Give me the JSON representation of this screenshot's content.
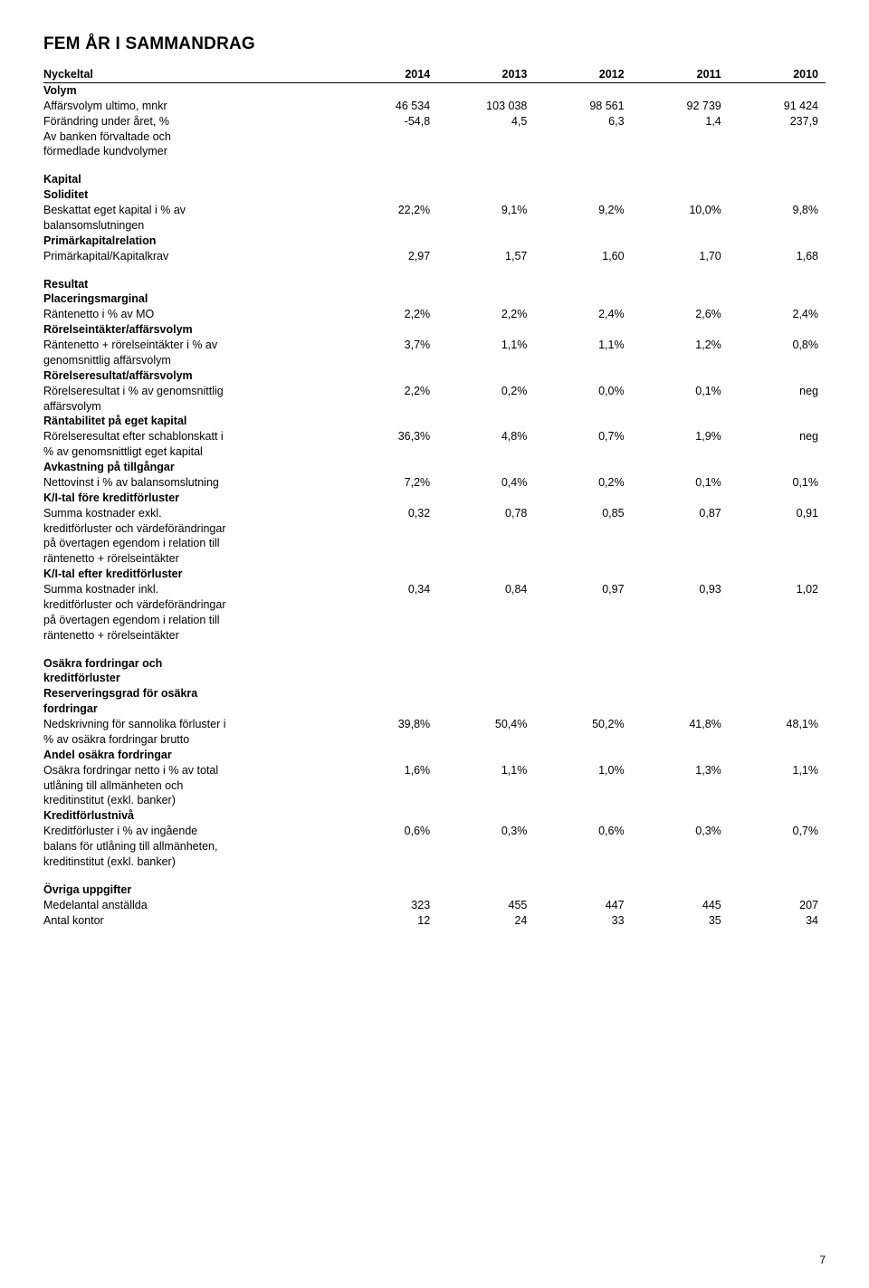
{
  "title": "FEM ÅR I SAMMANDRAG",
  "years": [
    "2014",
    "2013",
    "2012",
    "2011",
    "2010"
  ],
  "col_header_label": "Nyckeltal",
  "page_number": "7",
  "sections": [
    {
      "heading": "Volym",
      "rows": [
        {
          "label": "Affärsvolym ultimo, mnkr",
          "vals": [
            "46 534",
            "103 038",
            "98 561",
            "92 739",
            "91 424"
          ]
        },
        {
          "label": "Förändring under året, %",
          "vals": [
            "-54,8",
            "4,5",
            "6,3",
            "1,4",
            "237,9"
          ]
        },
        {
          "label": "Av banken förvaltade och",
          "vals": [
            "",
            "",
            "",
            "",
            ""
          ]
        },
        {
          "label": "förmedlade kundvolymer",
          "vals": [
            "",
            "",
            "",
            "",
            ""
          ]
        }
      ]
    },
    {
      "heading": "Kapital",
      "subheading": "Soliditet",
      "rows": [
        {
          "label": "Beskattat eget kapital i % av",
          "vals": [
            "22,2%",
            "9,1%",
            "9,2%",
            "10,0%",
            "9,8%"
          ]
        },
        {
          "label": "balansomslutningen",
          "vals": [
            "",
            "",
            "",
            "",
            ""
          ]
        },
        {
          "bold": true,
          "label": "Primärkapitalrelation",
          "vals": [
            "",
            "",
            "",
            "",
            ""
          ]
        },
        {
          "label": "Primärkapital/Kapitalkrav",
          "vals": [
            "2,97",
            "1,57",
            "1,60",
            "1,70",
            "1,68"
          ]
        }
      ]
    },
    {
      "heading": "Resultat",
      "subheading": "Placeringsmarginal",
      "rows": [
        {
          "label": "Räntenetto i % av MO",
          "vals": [
            "2,2%",
            "2,2%",
            "2,4%",
            "2,6%",
            "2,4%"
          ]
        },
        {
          "bold": true,
          "label": "Rörelseintäkter/affärsvolym",
          "vals": [
            "",
            "",
            "",
            "",
            ""
          ]
        },
        {
          "label": "Räntenetto + rörelseintäkter i % av",
          "vals": [
            "3,7%",
            "1,1%",
            "1,1%",
            "1,2%",
            "0,8%"
          ]
        },
        {
          "label": "genomsnittlig affärsvolym",
          "vals": [
            "",
            "",
            "",
            "",
            ""
          ]
        },
        {
          "bold": true,
          "label": "Rörelseresultat/affärsvolym",
          "vals": [
            "",
            "",
            "",
            "",
            ""
          ]
        },
        {
          "label": "Rörelseresultat i % av genomsnittlig",
          "vals": [
            "2,2%",
            "0,2%",
            "0,0%",
            "0,1%",
            "neg"
          ]
        },
        {
          "label": "affärsvolym",
          "vals": [
            "",
            "",
            "",
            "",
            ""
          ]
        },
        {
          "bold": true,
          "label": "Räntabilitet på eget kapital",
          "vals": [
            "",
            "",
            "",
            "",
            ""
          ]
        },
        {
          "label": "Rörelseresultat efter schablonskatt i",
          "vals": [
            "36,3%",
            "4,8%",
            "0,7%",
            "1,9%",
            "neg"
          ]
        },
        {
          "label": "% av genomsnittligt eget kapital",
          "vals": [
            "",
            "",
            "",
            "",
            ""
          ]
        },
        {
          "bold": true,
          "label": "Avkastning på tillgångar",
          "vals": [
            "",
            "",
            "",
            "",
            ""
          ]
        },
        {
          "label": "Nettovinst i % av balansomslutning",
          "vals": [
            "7,2%",
            "0,4%",
            "0,2%",
            "0,1%",
            "0,1%"
          ]
        },
        {
          "bold": true,
          "label": "K/I-tal före kreditförluster",
          "vals": [
            "",
            "",
            "",
            "",
            ""
          ]
        },
        {
          "label": "Summa kostnader exkl.",
          "vals": [
            "0,32",
            "0,78",
            "0,85",
            "0,87",
            "0,91"
          ]
        },
        {
          "label": "kreditförluster och värdeförändringar",
          "vals": [
            "",
            "",
            "",
            "",
            ""
          ]
        },
        {
          "label": "på övertagen egendom i relation till",
          "vals": [
            "",
            "",
            "",
            "",
            ""
          ]
        },
        {
          "label": "räntenetto + rörelseintäkter",
          "vals": [
            "",
            "",
            "",
            "",
            ""
          ]
        },
        {
          "bold": true,
          "label": "K/I-tal efter kreditförluster",
          "vals": [
            "",
            "",
            "",
            "",
            ""
          ]
        },
        {
          "label": "Summa kostnader inkl.",
          "vals": [
            "0,34",
            "0,84",
            "0,97",
            "0,93",
            "1,02"
          ]
        },
        {
          "label": "kreditförluster och värdeförändringar",
          "vals": [
            "",
            "",
            "",
            "",
            ""
          ]
        },
        {
          "label": "på övertagen egendom i relation till",
          "vals": [
            "",
            "",
            "",
            "",
            ""
          ]
        },
        {
          "label": "räntenetto + rörelseintäkter",
          "vals": [
            "",
            "",
            "",
            "",
            ""
          ]
        }
      ]
    },
    {
      "heading": "Osäkra fordringar och",
      "heading2": "kreditförluster",
      "subheading": "Reserveringsgrad för osäkra",
      "subheading2": "fordringar",
      "rows": [
        {
          "label": "Nedskrivning för sannolika förluster i",
          "vals": [
            "39,8%",
            "50,4%",
            "50,2%",
            "41,8%",
            "48,1%"
          ]
        },
        {
          "label": "% av osäkra fordringar brutto",
          "vals": [
            "",
            "",
            "",
            "",
            ""
          ]
        },
        {
          "bold": true,
          "label": "Andel osäkra fordringar",
          "vals": [
            "",
            "",
            "",
            "",
            ""
          ]
        },
        {
          "label": "Osäkra fordringar netto i % av total",
          "vals": [
            "1,6%",
            "1,1%",
            "1,0%",
            "1,3%",
            "1,1%"
          ]
        },
        {
          "label": "utlåning till allmänheten och",
          "vals": [
            "",
            "",
            "",
            "",
            ""
          ]
        },
        {
          "label": "kreditinstitut (exkl. banker)",
          "vals": [
            "",
            "",
            "",
            "",
            ""
          ]
        },
        {
          "bold": true,
          "label": "Kreditförlustnivå",
          "vals": [
            "",
            "",
            "",
            "",
            ""
          ]
        },
        {
          "label": "Kreditförluster i % av ingående",
          "vals": [
            "0,6%",
            "0,3%",
            "0,6%",
            "0,3%",
            "0,7%"
          ]
        },
        {
          "label": "balans för utlåning till allmänheten,",
          "vals": [
            "",
            "",
            "",
            "",
            ""
          ]
        },
        {
          "label": "kreditinstitut (exkl. banker)",
          "vals": [
            "",
            "",
            "",
            "",
            ""
          ]
        }
      ]
    },
    {
      "heading": "Övriga uppgifter",
      "rows": [
        {
          "label": "Medelantal anställda",
          "vals": [
            "323",
            "455",
            "447",
            "445",
            "207"
          ]
        },
        {
          "label": "Antal kontor",
          "vals": [
            "12",
            "24",
            "33",
            "35",
            "34"
          ]
        }
      ]
    }
  ]
}
